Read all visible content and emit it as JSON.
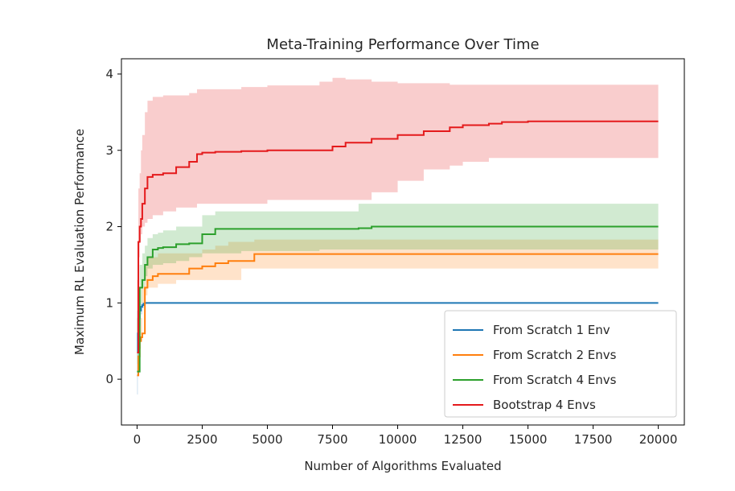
{
  "chart_data": {
    "type": "line",
    "title": "Meta-Training Performance Over Time",
    "xlabel": "Number of Algorithms Evaluated",
    "ylabel": "Maximum RL Evaluation Performance",
    "xlim": [
      -600,
      21000
    ],
    "ylim": [
      -0.6,
      4.2
    ],
    "xticks": [
      0,
      2500,
      5000,
      7500,
      10000,
      12500,
      15000,
      17500,
      20000
    ],
    "xtick_labels": [
      "0",
      "2500",
      "5000",
      "7500",
      "10000",
      "12500",
      "15000",
      "17500",
      "20000"
    ],
    "yticks": [
      0,
      1,
      2,
      3,
      4
    ],
    "ytick_labels": [
      "0",
      "1",
      "2",
      "3",
      "4"
    ],
    "grid": false,
    "legend_position": "bottom-right",
    "series": [
      {
        "name": "From Scratch 1 Env",
        "color": "#1f77b4",
        "x": [
          0,
          30,
          60,
          100,
          150,
          200,
          250,
          300,
          400,
          20000
        ],
        "y": [
          0.35,
          0.6,
          0.8,
          0.9,
          0.95,
          0.97,
          0.99,
          1.0,
          1.0,
          1.0
        ],
        "lower": [
          -0.4,
          -0.2,
          0.2,
          0.5,
          0.7,
          0.85,
          0.93,
          0.98,
          1.0,
          1.0
        ],
        "upper": [
          0.9,
          1.0,
          1.0,
          1.0,
          1.0,
          1.0,
          1.0,
          1.0,
          1.0,
          1.0
        ]
      },
      {
        "name": "From Scratch 2 Envs",
        "color": "#ff7f0e",
        "x": [
          0,
          50,
          100,
          150,
          200,
          300,
          400,
          600,
          800,
          1000,
          1500,
          2000,
          2500,
          3000,
          3500,
          4000,
          4500,
          5000,
          20000
        ],
        "y": [
          0.05,
          0.3,
          0.5,
          0.55,
          0.6,
          1.2,
          1.3,
          1.35,
          1.38,
          1.38,
          1.38,
          1.45,
          1.48,
          1.52,
          1.55,
          1.55,
          1.64,
          1.64,
          1.64
        ],
        "lower": [
          0.0,
          0.2,
          0.3,
          0.4,
          0.5,
          1.0,
          1.1,
          1.2,
          1.2,
          1.25,
          1.25,
          1.3,
          1.3,
          1.3,
          1.3,
          1.3,
          1.45,
          1.45,
          1.45
        ],
        "upper": [
          0.1,
          0.5,
          0.7,
          0.8,
          1.2,
          1.5,
          1.6,
          1.6,
          1.65,
          1.65,
          1.65,
          1.65,
          1.7,
          1.75,
          1.8,
          1.8,
          1.83,
          1.83,
          1.83
        ]
      },
      {
        "name": "From Scratch 4 Envs",
        "color": "#2ca02c",
        "x": [
          0,
          100,
          200,
          300,
          400,
          600,
          800,
          1000,
          1500,
          2000,
          2500,
          3000,
          4000,
          5000,
          7000,
          8500,
          9000,
          20000
        ],
        "y": [
          0.1,
          1.2,
          1.3,
          1.5,
          1.6,
          1.7,
          1.72,
          1.73,
          1.77,
          1.78,
          1.9,
          1.97,
          1.97,
          1.97,
          1.97,
          1.98,
          2.0,
          2.0
        ],
        "lower": [
          0.05,
          0.8,
          1.0,
          1.2,
          1.35,
          1.45,
          1.5,
          1.5,
          1.52,
          1.55,
          1.6,
          1.65,
          1.65,
          1.68,
          1.68,
          1.7,
          1.7,
          1.7
        ],
        "upper": [
          0.2,
          1.5,
          1.65,
          1.75,
          1.85,
          1.9,
          1.92,
          1.95,
          2.0,
          2.0,
          2.15,
          2.2,
          2.2,
          2.2,
          2.2,
          2.3,
          2.3,
          2.3
        ]
      },
      {
        "name": "Bootstrap 4 Envs",
        "color": "#e41a1c",
        "x": [
          0,
          50,
          100,
          150,
          200,
          300,
          400,
          600,
          1000,
          1500,
          2000,
          2300,
          2500,
          3000,
          4000,
          5000,
          7000,
          7500,
          8000,
          9000,
          10000,
          11000,
          12000,
          12500,
          13500,
          14000,
          15000,
          20000
        ],
        "y": [
          0.35,
          1.8,
          2.0,
          2.1,
          2.3,
          2.5,
          2.65,
          2.68,
          2.7,
          2.78,
          2.85,
          2.95,
          2.97,
          2.98,
          2.99,
          3.0,
          3.0,
          3.05,
          3.1,
          3.15,
          3.2,
          3.25,
          3.3,
          3.33,
          3.35,
          3.37,
          3.38,
          3.38
        ],
        "lower": [
          0.3,
          1.3,
          1.6,
          1.8,
          1.9,
          2.0,
          2.05,
          2.1,
          2.15,
          2.2,
          2.25,
          2.25,
          2.3,
          2.3,
          2.3,
          2.3,
          2.35,
          2.35,
          2.35,
          2.35,
          2.45,
          2.6,
          2.75,
          2.8,
          2.85,
          2.9,
          2.9,
          2.9
        ],
        "upper": [
          0.5,
          2.5,
          2.7,
          3.0,
          3.2,
          3.5,
          3.65,
          3.7,
          3.72,
          3.72,
          3.75,
          3.8,
          3.8,
          3.8,
          3.83,
          3.85,
          3.9,
          3.95,
          3.93,
          3.9,
          3.88,
          3.88,
          3.86,
          3.86,
          3.86,
          3.86,
          3.86,
          3.86
        ]
      }
    ]
  }
}
